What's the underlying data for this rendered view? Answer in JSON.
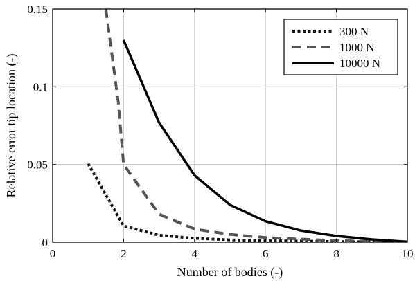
{
  "chart_data": {
    "type": "line",
    "title": "",
    "xlabel": "Number of bodies (-)",
    "ylabel": "Relative error tip location (-)",
    "xlim": [
      0,
      10
    ],
    "ylim": [
      0,
      0.15
    ],
    "xticks": [
      0,
      2,
      4,
      6,
      8,
      10
    ],
    "xtick_labels": [
      "0",
      "2",
      "4",
      "6",
      "8",
      "10"
    ],
    "yticks": [
      0,
      0.05,
      0.1,
      0.15
    ],
    "ytick_labels": [
      "0",
      "0.05",
      "0.1",
      "0.15"
    ],
    "grid": true,
    "legend": {
      "placement": "top-right",
      "entries": [
        "300 N",
        "1000 N",
        "10000 N"
      ]
    },
    "series": [
      {
        "name": "300 N",
        "color": "#111111",
        "style": "dotted",
        "x": [
          1,
          2,
          3,
          4,
          5,
          6,
          7,
          8,
          9,
          10
        ],
        "y": [
          0.0505,
          0.0105,
          0.0045,
          0.0025,
          0.0015,
          0.001,
          0.0007,
          0.0004,
          0.0002,
          0.0001
        ]
      },
      {
        "name": "1000 N",
        "color": "#555555",
        "style": "dashed",
        "x": [
          1.5,
          1.85,
          2,
          3,
          4,
          5,
          6,
          7,
          8,
          9,
          10
        ],
        "y": [
          0.15,
          0.09,
          0.05,
          0.018,
          0.0085,
          0.005,
          0.003,
          0.002,
          0.001,
          0.0005,
          0.0002
        ]
      },
      {
        "name": "10000 N",
        "color": "#000000",
        "style": "solid",
        "x": [
          2,
          3,
          4,
          5,
          6,
          7,
          8,
          9,
          10
        ],
        "y": [
          0.13,
          0.077,
          0.043,
          0.024,
          0.0135,
          0.0075,
          0.004,
          0.0018,
          0.0003
        ]
      }
    ]
  }
}
